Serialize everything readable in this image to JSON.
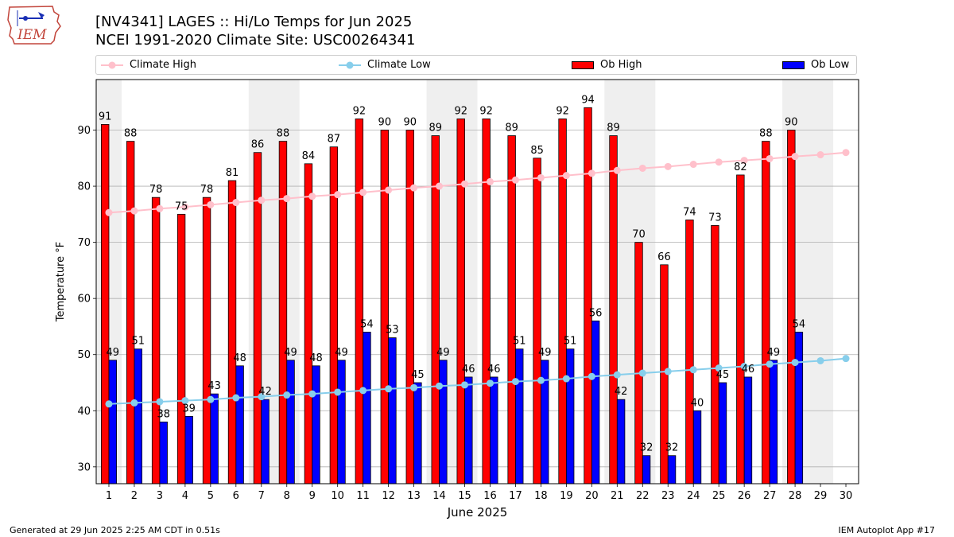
{
  "header": {
    "title_line1": "[NV4341] LAGES :: Hi/Lo Temps for Jun 2025",
    "title_line2": "NCEI 1991-2020 Climate Site: USC00264341",
    "logo_text": "IEM"
  },
  "legend": {
    "climate_high": "Climate High",
    "climate_low": "Climate Low",
    "ob_high": "Ob High",
    "ob_low": "Ob Low"
  },
  "footer": {
    "generated": "Generated at 29 Jun 2025 2:25 AM CDT in 0.51s",
    "app": "IEM Autoplot App #17"
  },
  "colors": {
    "ob_high": "#ff0000",
    "ob_low": "#0000ff",
    "climate_high": "#ffc0cb",
    "climate_low": "#87ceeb",
    "weekend_shade": "#efefef",
    "grid": "#b0b0b0"
  },
  "chart_data": {
    "type": "bar",
    "xlabel": "June 2025",
    "ylabel": "Temperature °F",
    "xlim": [
      0.5,
      30.5
    ],
    "ylim": [
      27,
      99
    ],
    "yticks": [
      30,
      40,
      50,
      60,
      70,
      80,
      90
    ],
    "grid": "horizontal",
    "legend_position": "top",
    "days": [
      1,
      2,
      3,
      4,
      5,
      6,
      7,
      8,
      9,
      10,
      11,
      12,
      13,
      14,
      15,
      16,
      17,
      18,
      19,
      20,
      21,
      22,
      23,
      24,
      25,
      26,
      27,
      28,
      29,
      30
    ],
    "weekend_shading": [
      [
        1,
        1
      ],
      [
        7,
        8
      ],
      [
        14,
        15
      ],
      [
        21,
        22
      ],
      [
        28,
        29
      ]
    ],
    "series": [
      {
        "name": "Ob High",
        "kind": "bar",
        "values": [
          91,
          88,
          78,
          75,
          78,
          81,
          86,
          88,
          84,
          87,
          92,
          90,
          90,
          89,
          92,
          92,
          89,
          85,
          92,
          94,
          89,
          70,
          66,
          74,
          73,
          82,
          88,
          90
        ]
      },
      {
        "name": "Ob Low",
        "kind": "bar",
        "values": [
          49,
          51,
          38,
          39,
          43,
          48,
          42,
          49,
          48,
          49,
          54,
          53,
          45,
          49,
          46,
          46,
          51,
          49,
          51,
          56,
          42,
          32,
          32,
          40,
          45,
          46,
          49,
          54
        ]
      },
      {
        "name": "Climate High",
        "kind": "line",
        "values": [
          75.3,
          75.6,
          76.0,
          76.3,
          76.7,
          77.1,
          77.5,
          77.8,
          78.2,
          78.5,
          78.9,
          79.3,
          79.7,
          80.0,
          80.4,
          80.8,
          81.1,
          81.5,
          81.9,
          82.3,
          82.8,
          83.2,
          83.5,
          83.9,
          84.3,
          84.6,
          84.9,
          85.3,
          85.6,
          86.0
        ]
      },
      {
        "name": "Climate Low",
        "kind": "line",
        "values": [
          41.2,
          41.4,
          41.6,
          41.8,
          42.0,
          42.3,
          42.5,
          42.8,
          43.0,
          43.3,
          43.6,
          43.9,
          44.1,
          44.4,
          44.6,
          44.9,
          45.2,
          45.4,
          45.7,
          46.1,
          46.4,
          46.7,
          47.0,
          47.3,
          47.6,
          47.9,
          48.3,
          48.6,
          48.9,
          49.3
        ]
      }
    ]
  }
}
